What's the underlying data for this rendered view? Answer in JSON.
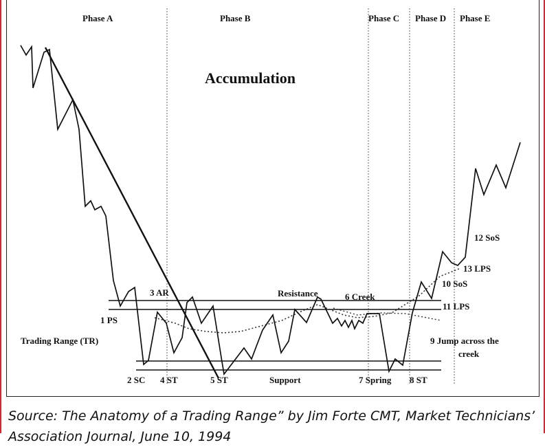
{
  "diagram": {
    "title": "Accumulation",
    "phases": [
      "Phase A",
      "Phase B",
      "Phase C",
      "Phase D",
      "Phase E"
    ],
    "labels": {
      "ar": "3 AR",
      "ps": "1 PS",
      "trading_range": "Trading Range (TR)",
      "sc": "2 SC",
      "st4": "4 ST",
      "st5": "5 ST",
      "support": "Support",
      "resistance": "Resistance",
      "creek": "6 Creek",
      "spring": "7 Spring",
      "st8": "8 ST",
      "jump_line1": "9 Jump across the",
      "jump_line2": "creek",
      "sos10": "10 SoS",
      "lps11": "11 LPS",
      "sos12": "12 SoS",
      "lps13": "13 LPS"
    }
  },
  "caption": "Source: The Anatomy of a Trading Range” by Jim Forte CMT, Market Technicians’ Association Journal, June 10, 1994"
}
